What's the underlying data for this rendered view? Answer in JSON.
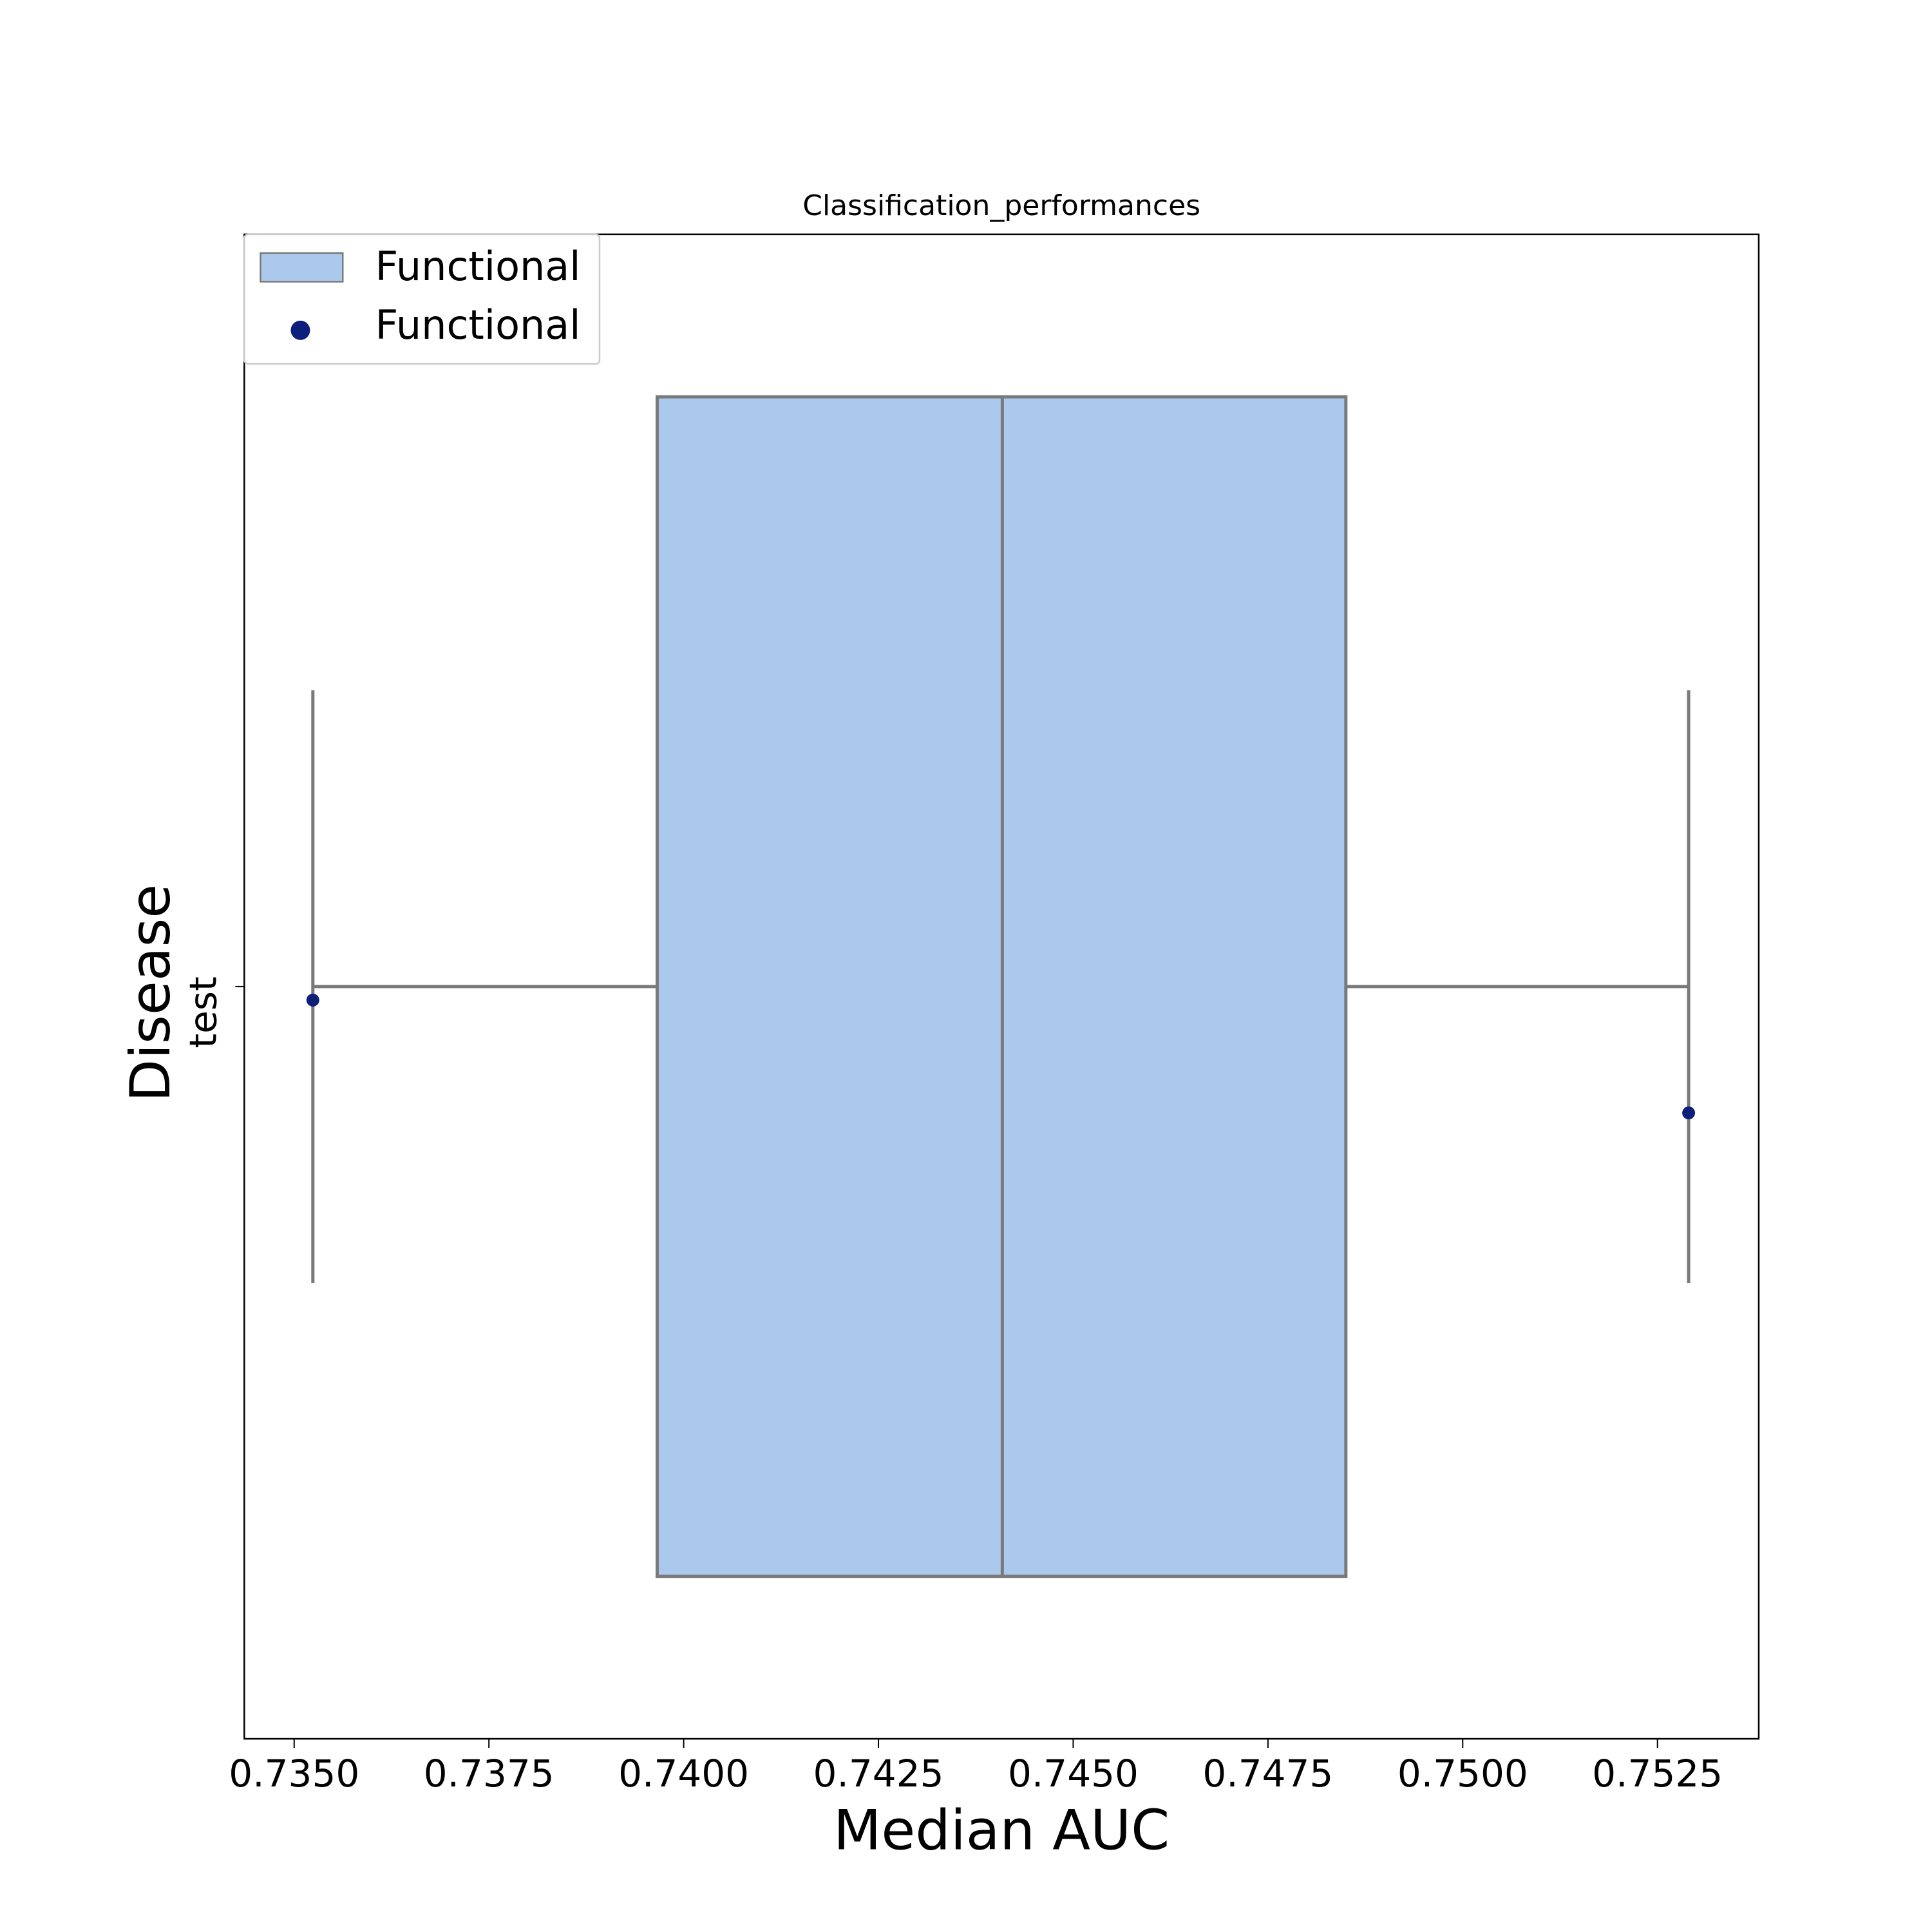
{
  "chart_data": {
    "type": "box",
    "title": "Classification_performances",
    "xlabel": "Median AUC",
    "ylabel": "Disease",
    "categories": [
      "test"
    ],
    "xlim": [
      0.73436,
      0.7538
    ],
    "xticks": [
      {
        "value": 0.735,
        "label": "0.7350"
      },
      {
        "value": 0.7375,
        "label": "0.7375"
      },
      {
        "value": 0.74,
        "label": "0.7400"
      },
      {
        "value": 0.7425,
        "label": "0.7425"
      },
      {
        "value": 0.745,
        "label": "0.7450"
      },
      {
        "value": 0.7475,
        "label": "0.7475"
      },
      {
        "value": 0.75,
        "label": "0.7500"
      },
      {
        "value": 0.7525,
        "label": "0.7525"
      }
    ],
    "boxes": [
      {
        "name": "Functional",
        "color": "#abc9ec",
        "edge_color": "#7a7a7a",
        "whislo": 0.73524,
        "q1": 0.73966,
        "median": 0.74409,
        "q3": 0.7485,
        "whishi": 0.7529
      }
    ],
    "points": [
      {
        "name": "Functional",
        "color": "#0c1f7a",
        "values": [
          0.73524,
          0.7529
        ]
      }
    ],
    "legend": "upper left"
  }
}
